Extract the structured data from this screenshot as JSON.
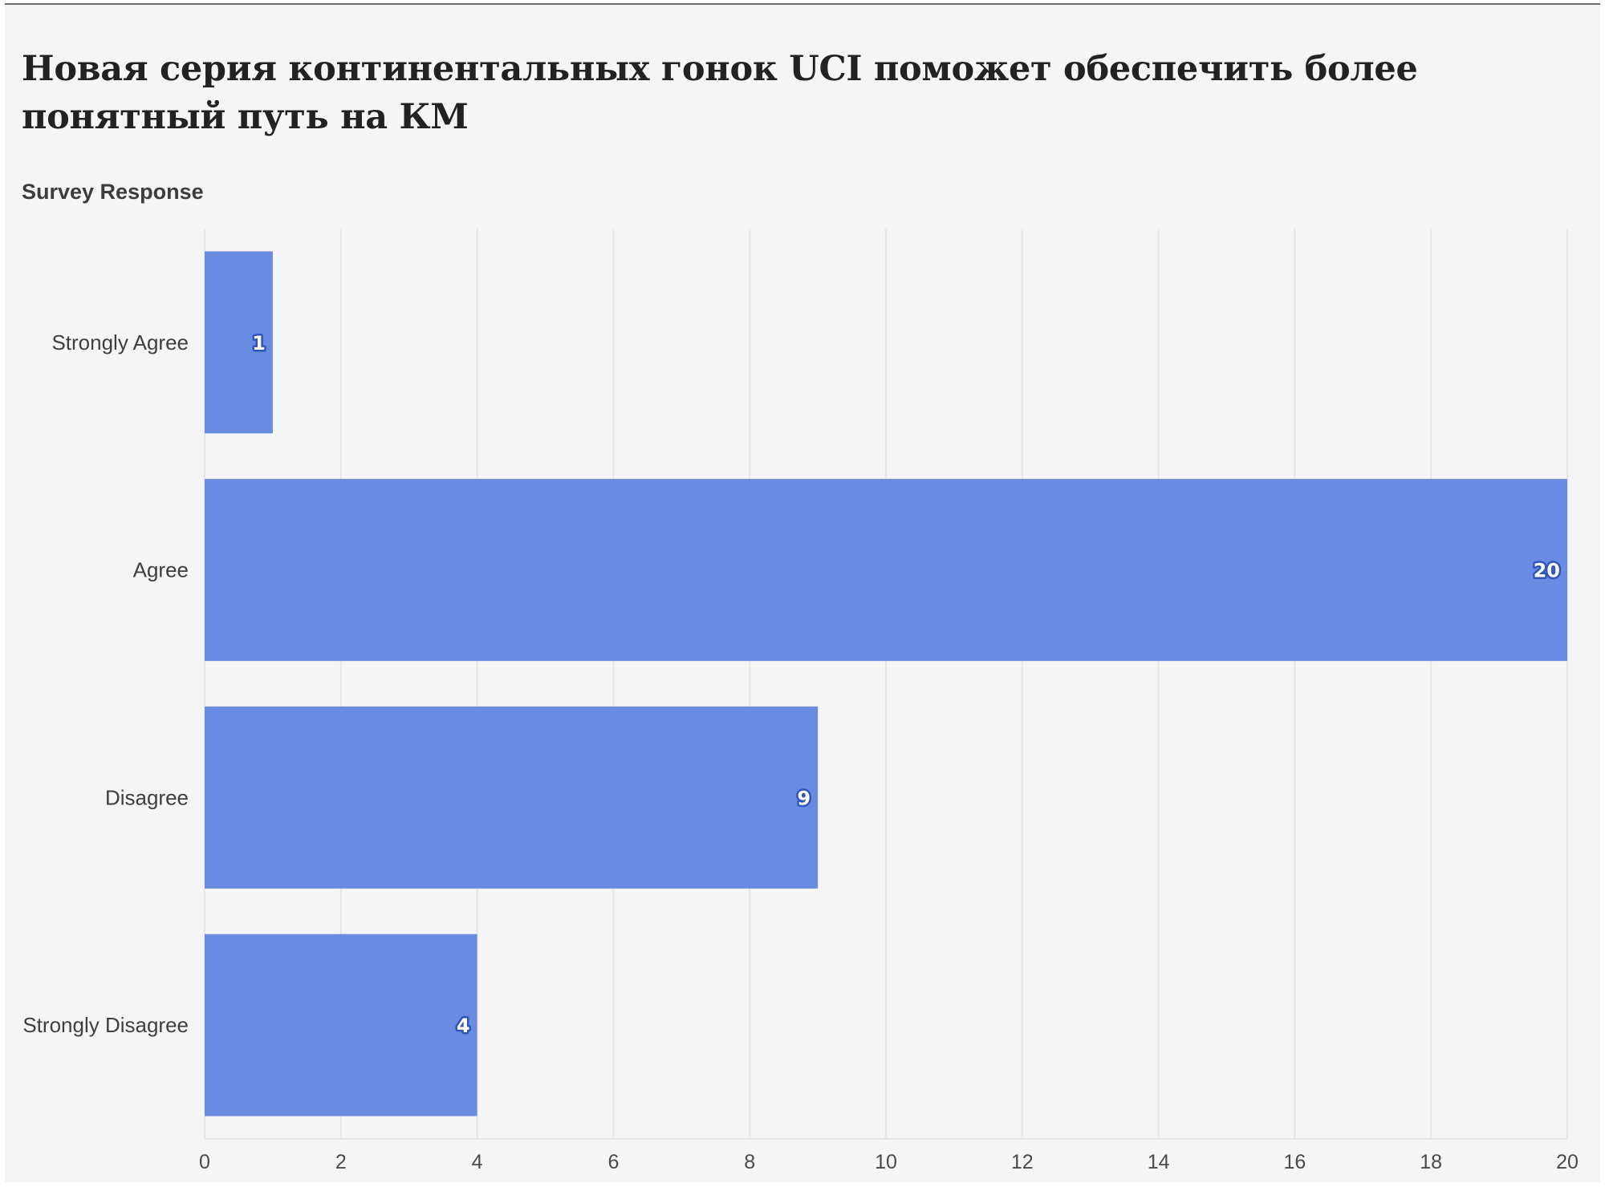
{
  "header": {
    "title": "Новая серия континентальных гонок UCI поможет обеспечить более понятный путь на КМ"
  },
  "colors": {
    "bar": "#6a8be2",
    "label_outline": "#2e55b8",
    "grid": "#e6e6e6",
    "background": "#f5f5f5"
  },
  "chart_data": {
    "type": "bar",
    "orientation": "horizontal",
    "title": "Новая серия континентальных гонок UCI поможет обеспечить более понятный путь на КМ",
    "ylabel": "Survey Response",
    "xlabel": "",
    "categories": [
      "Strongly Agree",
      "Agree",
      "Disagree",
      "Strongly Disagree"
    ],
    "values": [
      1,
      20,
      9,
      4
    ],
    "xlim": [
      0,
      20
    ],
    "xticks": [
      0,
      2,
      4,
      6,
      8,
      10,
      12,
      14,
      16,
      18,
      20
    ],
    "grid": true,
    "data_labels": true
  }
}
